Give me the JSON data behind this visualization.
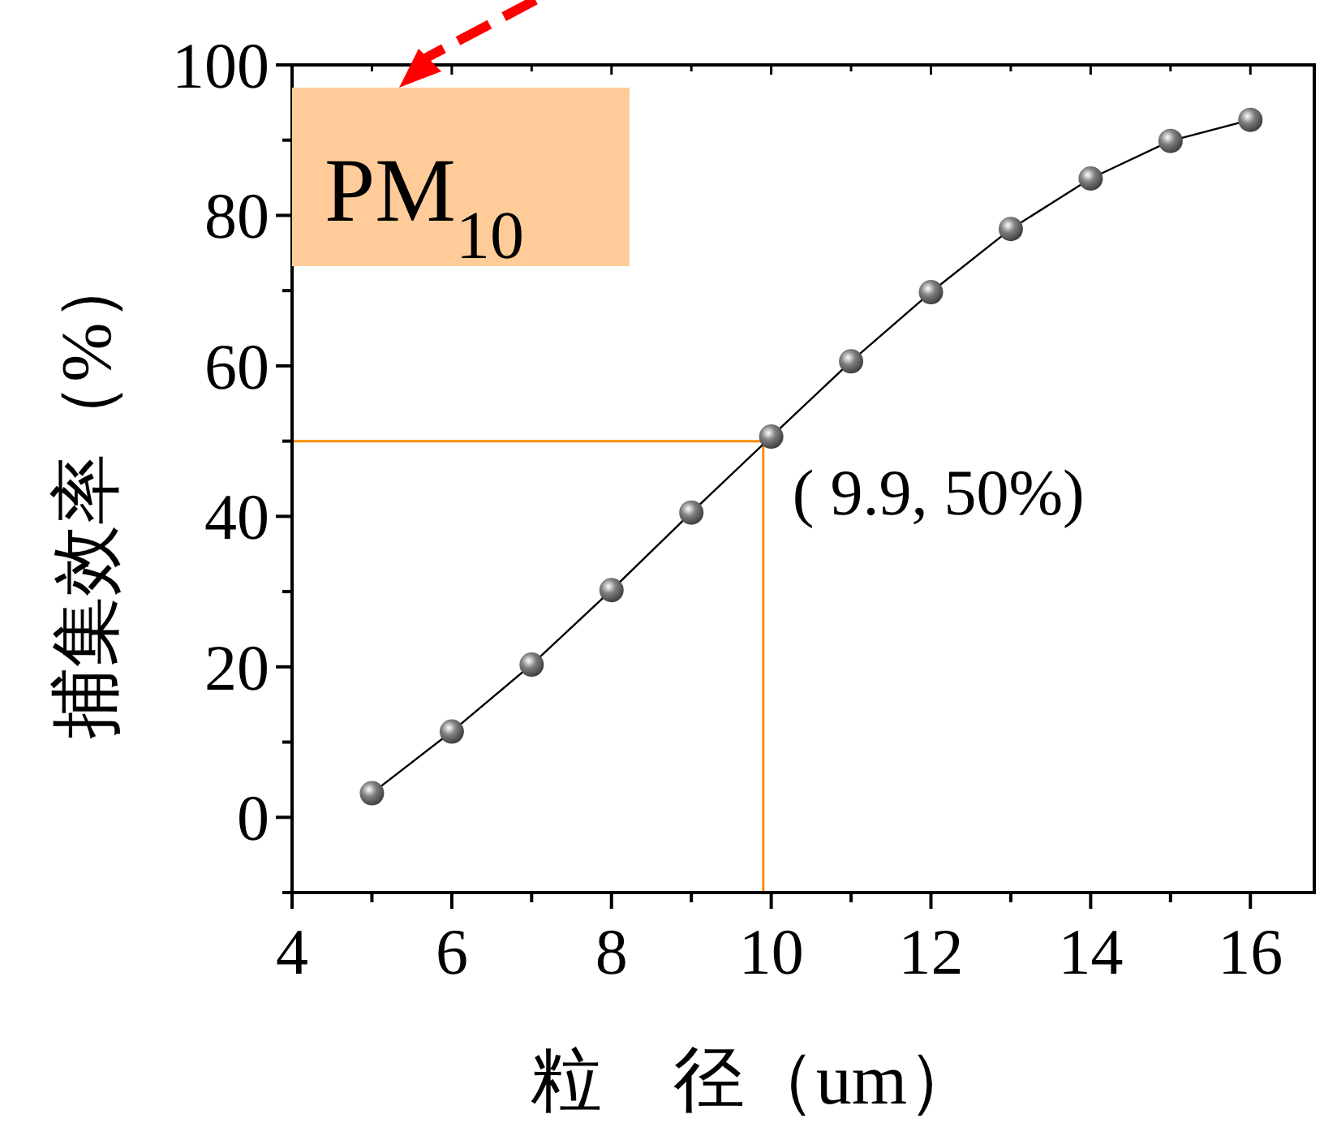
{
  "chart_data": {
    "type": "line",
    "xlabel": "粒　径（um）",
    "ylabel": "捕集效率（%）",
    "x": [
      5,
      6,
      7,
      8,
      9,
      10,
      11,
      12,
      13,
      14,
      15,
      16
    ],
    "series": [
      {
        "color": "#808080",
        "values": [
          3.2,
          11.4,
          20.3,
          30.2,
          40.5,
          50.6,
          60.6,
          69.8,
          78.2,
          84.9,
          89.9,
          92.7
        ]
      }
    ],
    "xlim": [
      4,
      16.8
    ],
    "ylim": [
      -10,
      100
    ],
    "xticks": [
      4,
      6,
      8,
      10,
      12,
      14,
      16
    ],
    "yticks": [
      0,
      20,
      40,
      60,
      80,
      100
    ],
    "marker": "circle",
    "line_style": "solid",
    "ref_lines": [
      {
        "axis": "y",
        "value": 50,
        "color": "#ff8c00"
      },
      {
        "axis": "x",
        "value": 9.9,
        "color": "#ff8c00"
      }
    ],
    "annotations": [
      {
        "text": "(  9.9,  50%)",
        "x": 9.9,
        "y": 50
      },
      "PM$_{10}$"
    ]
  }
}
